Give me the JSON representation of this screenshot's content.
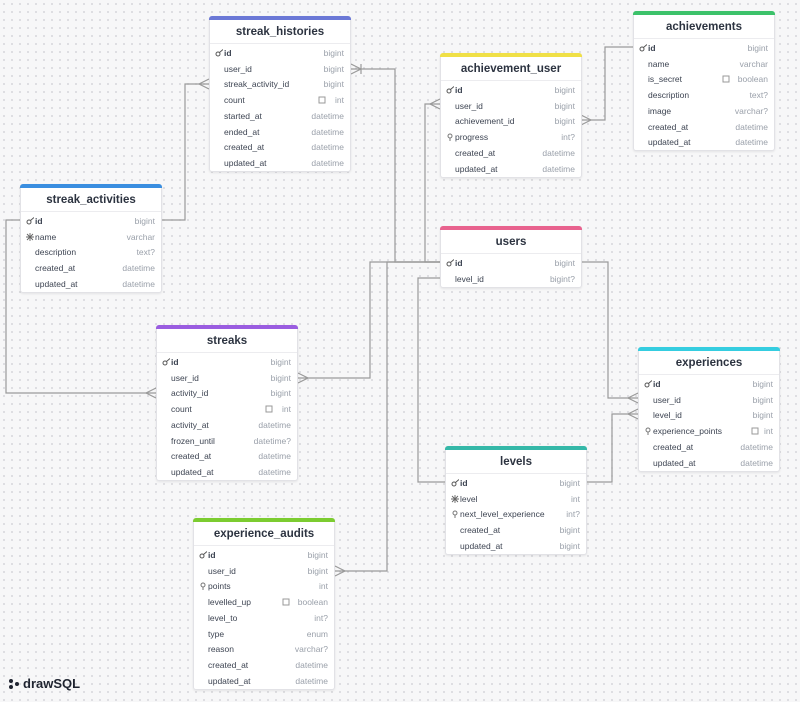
{
  "brand": "drawSQL",
  "tables": [
    {
      "name": "streak_histories",
      "columns": [
        {
          "name": "id",
          "type": "bigint"
        },
        {
          "name": "user_id",
          "type": "bigint"
        },
        {
          "name": "streak_activity_id",
          "type": "bigint"
        },
        {
          "name": "count",
          "type": "int"
        },
        {
          "name": "started_at",
          "type": "datetime"
        },
        {
          "name": "ended_at",
          "type": "datetime"
        },
        {
          "name": "created_at",
          "type": "datetime"
        },
        {
          "name": "updated_at",
          "type": "datetime"
        }
      ]
    },
    {
      "name": "achievement_user",
      "columns": [
        {
          "name": "id",
          "type": "bigint"
        },
        {
          "name": "user_id",
          "type": "bigint"
        },
        {
          "name": "achievement_id",
          "type": "bigint"
        },
        {
          "name": "progress",
          "type": "int?"
        },
        {
          "name": "created_at",
          "type": "datetime"
        },
        {
          "name": "updated_at",
          "type": "datetime"
        }
      ]
    },
    {
      "name": "achievements",
      "columns": [
        {
          "name": "id",
          "type": "bigint"
        },
        {
          "name": "name",
          "type": "varchar"
        },
        {
          "name": "is_secret",
          "type": "boolean"
        },
        {
          "name": "description",
          "type": "text?"
        },
        {
          "name": "image",
          "type": "varchar?"
        },
        {
          "name": "created_at",
          "type": "datetime"
        },
        {
          "name": "updated_at",
          "type": "datetime"
        }
      ]
    },
    {
      "name": "streak_activities",
      "columns": [
        {
          "name": "id",
          "type": "bigint"
        },
        {
          "name": "name",
          "type": "varchar"
        },
        {
          "name": "description",
          "type": "text?"
        },
        {
          "name": "created_at",
          "type": "datetime"
        },
        {
          "name": "updated_at",
          "type": "datetime"
        }
      ]
    },
    {
      "name": "users",
      "columns": [
        {
          "name": "id",
          "type": "bigint"
        },
        {
          "name": "level_id",
          "type": "bigint?"
        }
      ]
    },
    {
      "name": "streaks",
      "columns": [
        {
          "name": "id",
          "type": "bigint"
        },
        {
          "name": "user_id",
          "type": "bigint"
        },
        {
          "name": "activity_id",
          "type": "bigint"
        },
        {
          "name": "count",
          "type": "int"
        },
        {
          "name": "activity_at",
          "type": "datetime"
        },
        {
          "name": "frozen_until",
          "type": "datetime?"
        },
        {
          "name": "created_at",
          "type": "datetime"
        },
        {
          "name": "updated_at",
          "type": "datetime"
        }
      ]
    },
    {
      "name": "experiences",
      "columns": [
        {
          "name": "id",
          "type": "bigint"
        },
        {
          "name": "user_id",
          "type": "bigint"
        },
        {
          "name": "level_id",
          "type": "bigint"
        },
        {
          "name": "experience_points",
          "type": "int"
        },
        {
          "name": "created_at",
          "type": "datetime"
        },
        {
          "name": "updated_at",
          "type": "datetime"
        }
      ]
    },
    {
      "name": "levels",
      "columns": [
        {
          "name": "id",
          "type": "bigint"
        },
        {
          "name": "level",
          "type": "int"
        },
        {
          "name": "next_level_experience",
          "type": "int?"
        },
        {
          "name": "created_at",
          "type": "bigint"
        },
        {
          "name": "updated_at",
          "type": "bigint"
        }
      ]
    },
    {
      "name": "experience_audits",
      "columns": [
        {
          "name": "id",
          "type": "bigint"
        },
        {
          "name": "user_id",
          "type": "bigint"
        },
        {
          "name": "points",
          "type": "int"
        },
        {
          "name": "levelled_up",
          "type": "boolean"
        },
        {
          "name": "level_to",
          "type": "int?"
        },
        {
          "name": "type",
          "type": "enum"
        },
        {
          "name": "reason",
          "type": "varchar?"
        },
        {
          "name": "created_at",
          "type": "datetime"
        },
        {
          "name": "updated_at",
          "type": "datetime"
        }
      ]
    }
  ]
}
